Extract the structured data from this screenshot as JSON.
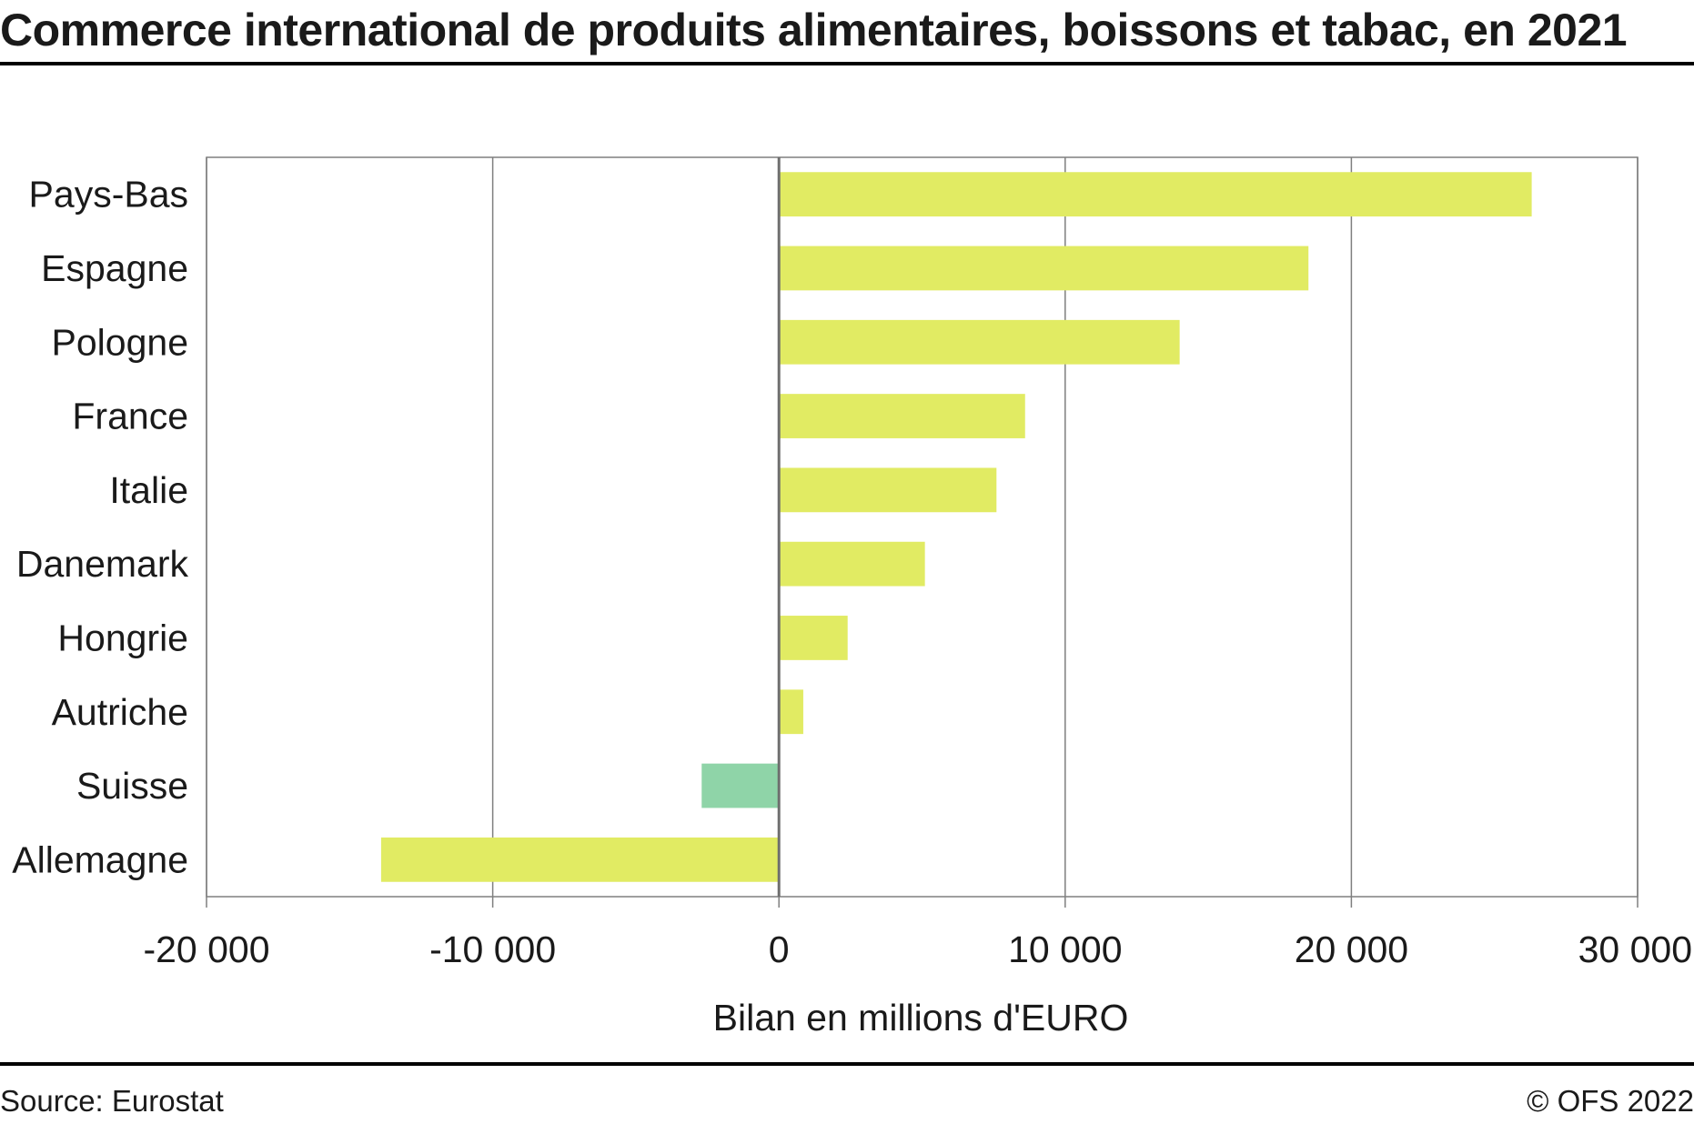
{
  "header": {
    "title": "Commerce international de produits alimentaires, boissons et tabac, en 2021"
  },
  "footer": {
    "source": "Source: Eurostat",
    "copyright": "© OFS 2022"
  },
  "colors": {
    "bar": "#e1eb63",
    "highlight": "#8fd4a8",
    "grid": "#7f7f7f",
    "zero_line": "#6e6e6e",
    "text": "#1a1a1a"
  },
  "chart_data": {
    "type": "bar",
    "orientation": "horizontal",
    "title": "Commerce international de produits alimentaires, boissons et tabac, en 2021",
    "xlabel": "Bilan en millions d'EURO",
    "ylabel": "",
    "xlim": [
      -20000,
      30000
    ],
    "xticks": [
      -20000,
      -10000,
      0,
      10000,
      20000,
      30000
    ],
    "xtick_labels": [
      "-20 000",
      "-10 000",
      "0",
      "10 000",
      "20 000",
      "30 000"
    ],
    "grid": "vertical",
    "categories": [
      "Pays-Bas",
      "Espagne",
      "Pologne",
      "France",
      "Italie",
      "Danemark",
      "Hongrie",
      "Autriche",
      "Suisse",
      "Allemagne"
    ],
    "values": [
      26300,
      18500,
      14000,
      8600,
      7600,
      5100,
      2400,
      850,
      -2700,
      -13900
    ],
    "highlight": "Suisse"
  }
}
